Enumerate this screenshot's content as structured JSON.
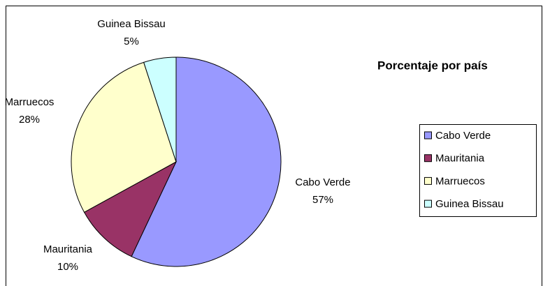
{
  "chart_data": {
    "type": "pie",
    "title": "Porcentaje por país",
    "categories": [
      "Cabo Verde",
      "Mauritania",
      "Marruecos",
      "Guinea Bissau"
    ],
    "values": [
      57,
      10,
      28,
      5
    ],
    "value_labels": [
      "57%",
      "10%",
      "28%",
      "5%"
    ],
    "colors": [
      "#9999ff",
      "#993366",
      "#ffffcc",
      "#ccffff"
    ],
    "legend": "right"
  }
}
